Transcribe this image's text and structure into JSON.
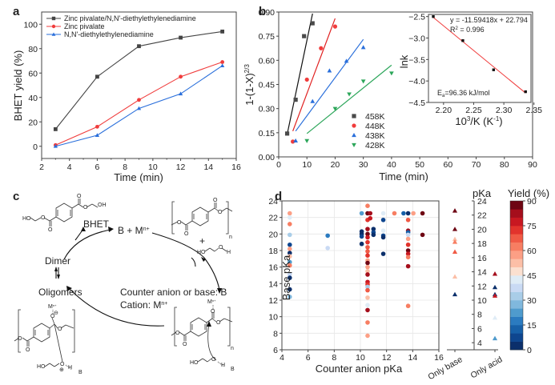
{
  "figure": {
    "panel_labels": [
      "a",
      "b",
      "c",
      "d"
    ]
  },
  "chart_data": [
    {
      "panel": "a",
      "type": "line",
      "title": "",
      "xlabel": "Time (min)",
      "ylabel": "BHET yield (%)",
      "xlim": [
        2,
        16
      ],
      "ylim": [
        -10,
        110
      ],
      "xticks": [
        2,
        4,
        6,
        8,
        10,
        12,
        14,
        16
      ],
      "yticks": [
        0,
        20,
        40,
        60,
        80,
        100
      ],
      "legend_position": "top-left",
      "x": [
        3,
        6,
        9,
        12,
        15
      ],
      "series": [
        {
          "name": "Zinc pivalate/N,N'-diethylethylenediamine",
          "marker": "square",
          "color": "#444444",
          "values": [
            14,
            57,
            82,
            89,
            94
          ]
        },
        {
          "name": "Zinc pivalate",
          "marker": "circle",
          "color": "#f03c3c",
          "values": [
            1,
            16,
            38,
            57,
            69
          ]
        },
        {
          "name": "N,N'-diethylethylenediamine",
          "marker": "triangle-up",
          "color": "#2a6fdb",
          "values": [
            0,
            9,
            31,
            43,
            66
          ]
        }
      ]
    },
    {
      "panel": "b",
      "type": "scatter",
      "title": "",
      "xlabel": "Time (min)",
      "ylabel": "1-(1-X)^2/3",
      "ylabel_base": "1-(1-X)",
      "ylabel_sup": "2/3",
      "xlim": [
        0,
        90
      ],
      "ylim": [
        0,
        0.9
      ],
      "xticks": [
        0,
        10,
        20,
        30,
        40,
        50,
        60,
        70,
        80,
        90
      ],
      "yticks": [
        "0.00",
        "0.15",
        "0.30",
        "0.45",
        "0.60",
        "0.75",
        "0.90"
      ],
      "legend_position": "bottom-center",
      "series": [
        {
          "name": "458K",
          "marker": "square",
          "color": "#4a4a4a",
          "line_color": "#111111",
          "x": [
            3,
            6,
            9,
            12
          ],
          "values": [
            0.145,
            0.355,
            0.75,
            0.83
          ],
          "fit": [
            [
              3,
              0.14
            ],
            [
              12,
              0.89
            ]
          ]
        },
        {
          "name": "448K",
          "marker": "circle",
          "color": "#f03c3c",
          "line_color": "#e02020",
          "x": [
            5,
            10,
            15,
            20
          ],
          "values": [
            0.095,
            0.48,
            0.675,
            0.81
          ],
          "fit": [
            [
              5,
              0.16
            ],
            [
              20,
              0.86
            ]
          ]
        },
        {
          "name": "438K",
          "marker": "triangle-up",
          "color": "#2a6fdb",
          "line_color": "#2a6fdb",
          "x": [
            6,
            12,
            18,
            24,
            30
          ],
          "values": [
            0.1,
            0.345,
            0.535,
            0.595,
            0.68
          ],
          "fit": [
            [
              6,
              0.16
            ],
            [
              30,
              0.73
            ]
          ]
        },
        {
          "name": "428K",
          "marker": "triangle-down",
          "color": "#2ca65a",
          "line_color": "#2ca65a",
          "x": [
            10,
            20,
            25,
            30,
            40
          ],
          "values": [
            0.1,
            0.3,
            0.39,
            0.47,
            0.52
          ],
          "fit": [
            [
              10,
              0.145
            ],
            [
              40,
              0.57
            ]
          ]
        }
      ],
      "inset": {
        "type": "scatter",
        "xlabel": "10^3/K (K^-1)",
        "xlabel_base": "10",
        "xlabel_sup": "3",
        "xlabel_mid": "/K (K",
        "xlabel_sup2": "-1",
        "xlabel_end": ")",
        "ylabel": "lnk",
        "xlim": [
          2.175,
          2.345
        ],
        "ylim": [
          -4.5,
          -2.45
        ],
        "xticks": [
          "2.20",
          "2.25",
          "2.30",
          "2.35"
        ],
        "yticks": [
          "-2.5",
          "-3.0",
          "-3.5",
          "-4.0",
          "-4.5"
        ],
        "x": [
          2.183,
          2.232,
          2.283,
          2.336
        ],
        "values": [
          -2.5,
          -3.06,
          -3.74,
          -4.25
        ],
        "fit_color": "#f03c3c",
        "fit": [
          [
            2.183,
            -2.52
          ],
          [
            2.336,
            -4.28
          ]
        ],
        "equation": "y = -11.59418x + 22.794",
        "r2_base": "R",
        "r2_sup": "2",
        "r2_rest": " = 0.996",
        "ea_base": "E",
        "ea_sub": "a",
        "ea_rest": "=96.36 kJ/mol"
      }
    },
    {
      "panel": "d",
      "type": "scatter",
      "title": "",
      "xlabel": "Counter anion pKa",
      "ylabel": "Base pKa",
      "xlim": [
        4,
        16
      ],
      "ylim": [
        6,
        24
      ],
      "xticks": [
        4,
        6,
        8,
        10,
        12,
        14,
        16
      ],
      "yticks": [
        6,
        8,
        10,
        12,
        14,
        16,
        18,
        20,
        22,
        24
      ],
      "grid": true,
      "color_scale": {
        "label": "Yield (%)",
        "range": [
          0,
          90
        ],
        "ticks": [
          0,
          15,
          30,
          45,
          60,
          75,
          90
        ],
        "colors": [
          "#0b2f6b",
          "#0e468f",
          "#1760a8",
          "#2b7bc0",
          "#4f9bcd",
          "#80b8dd",
          "#a9cde8",
          "#c9daf4",
          "#dfecf6",
          "#fbe0d0",
          "#fcbfa7",
          "#fc9f85",
          "#f77e62",
          "#f05a45",
          "#e2332c",
          "#c81821",
          "#a50e1c",
          "#6e0513"
        ]
      },
      "points": [
        {
          "x": 4.6,
          "y": 22.5,
          "yield": 55
        },
        {
          "x": 4.6,
          "y": 22.0,
          "yield": 42
        },
        {
          "x": 4.6,
          "y": 21.2,
          "yield": 62
        },
        {
          "x": 4.6,
          "y": 19.9,
          "yield": 33
        },
        {
          "x": 4.6,
          "y": 18.7,
          "yield": 5
        },
        {
          "x": 4.6,
          "y": 18.2,
          "yield": 58
        },
        {
          "x": 4.6,
          "y": 17.7,
          "yield": 2
        },
        {
          "x": 4.6,
          "y": 17.3,
          "yield": 52
        },
        {
          "x": 4.6,
          "y": 16.6,
          "yield": 22
        },
        {
          "x": 4.6,
          "y": 16.2,
          "yield": 60
        },
        {
          "x": 4.6,
          "y": 15.1,
          "yield": 35
        },
        {
          "x": 4.6,
          "y": 14.7,
          "yield": 3
        },
        {
          "x": 4.6,
          "y": 13.3,
          "yield": 2
        },
        {
          "x": 4.6,
          "y": 12.4,
          "yield": 28
        },
        {
          "x": 7.5,
          "y": 19.8,
          "yield": 18
        },
        {
          "x": 7.5,
          "y": 18.3,
          "yield": 38
        },
        {
          "x": 10.1,
          "y": 22.5,
          "yield": 20
        },
        {
          "x": 10.1,
          "y": 20.3,
          "yield": 4
        },
        {
          "x": 10.1,
          "y": 20.0,
          "yield": 2
        },
        {
          "x": 10.1,
          "y": 19.7,
          "yield": 6
        },
        {
          "x": 10.1,
          "y": 18.8,
          "yield": 3
        },
        {
          "x": 10.55,
          "y": 23.4,
          "yield": 62
        },
        {
          "x": 10.55,
          "y": 22.5,
          "yield": 86
        },
        {
          "x": 10.55,
          "y": 21.7,
          "yield": 70
        },
        {
          "x": 10.55,
          "y": 20.6,
          "yield": 82
        },
        {
          "x": 10.55,
          "y": 20.0,
          "yield": 88
        },
        {
          "x": 10.55,
          "y": 19.6,
          "yield": 78
        },
        {
          "x": 10.55,
          "y": 19.0,
          "yield": 74
        },
        {
          "x": 10.55,
          "y": 18.4,
          "yield": 68
        },
        {
          "x": 10.55,
          "y": 17.9,
          "yield": 65
        },
        {
          "x": 10.55,
          "y": 17.4,
          "yield": 72
        },
        {
          "x": 10.55,
          "y": 16.8,
          "yield": 55
        },
        {
          "x": 10.55,
          "y": 16.5,
          "yield": 88
        },
        {
          "x": 10.55,
          "y": 16.0,
          "yield": 57
        },
        {
          "x": 10.55,
          "y": 15.5,
          "yield": 52
        },
        {
          "x": 10.55,
          "y": 15.1,
          "yield": 82
        },
        {
          "x": 10.55,
          "y": 14.2,
          "yield": 76
        },
        {
          "x": 10.55,
          "y": 13.9,
          "yield": 70
        },
        {
          "x": 10.55,
          "y": 13.6,
          "yield": 30
        },
        {
          "x": 10.55,
          "y": 13.2,
          "yield": 66
        },
        {
          "x": 10.55,
          "y": 12.3,
          "yield": 50
        },
        {
          "x": 10.55,
          "y": 11.4,
          "yield": 42
        },
        {
          "x": 10.55,
          "y": 10.8,
          "yield": 80
        },
        {
          "x": 10.55,
          "y": 9.3,
          "yield": 63
        },
        {
          "x": 10.55,
          "y": 7.7,
          "yield": 55
        },
        {
          "x": 10.75,
          "y": 22.5,
          "yield": 84
        },
        {
          "x": 10.75,
          "y": 21.9,
          "yield": 78
        },
        {
          "x": 11.0,
          "y": 20.6,
          "yield": 4
        },
        {
          "x": 11.0,
          "y": 20.2,
          "yield": 5
        },
        {
          "x": 11.0,
          "y": 19.9,
          "yield": 3
        },
        {
          "x": 11.75,
          "y": 22.5,
          "yield": 42
        },
        {
          "x": 11.75,
          "y": 21.7,
          "yield": 7
        },
        {
          "x": 11.75,
          "y": 20.4,
          "yield": 40
        },
        {
          "x": 11.75,
          "y": 19.8,
          "yield": 5
        },
        {
          "x": 11.75,
          "y": 19.6,
          "yield": 3
        },
        {
          "x": 11.75,
          "y": 17.6,
          "yield": 2
        },
        {
          "x": 12.6,
          "y": 22.5,
          "yield": 62
        },
        {
          "x": 13.3,
          "y": 22.5,
          "yield": 14
        },
        {
          "x": 13.65,
          "y": 22.5,
          "yield": 4
        },
        {
          "x": 14.05,
          "y": 22.5,
          "yield": 58
        },
        {
          "x": 14.75,
          "y": 22.5,
          "yield": 90
        },
        {
          "x": 14.75,
          "y": 19.9,
          "yield": 88
        },
        {
          "x": 13.65,
          "y": 21.7,
          "yield": 68
        },
        {
          "x": 13.65,
          "y": 20.4,
          "yield": 82
        },
        {
          "x": 13.65,
          "y": 20.2,
          "yield": 10
        },
        {
          "x": 13.65,
          "y": 19.9,
          "yield": 38
        },
        {
          "x": 13.65,
          "y": 19.4,
          "yield": 56
        },
        {
          "x": 13.65,
          "y": 18.7,
          "yield": 74
        },
        {
          "x": 13.65,
          "y": 18.0,
          "yield": 90
        },
        {
          "x": 13.65,
          "y": 17.6,
          "yield": 78
        },
        {
          "x": 13.65,
          "y": 17.2,
          "yield": 60
        },
        {
          "x": 13.65,
          "y": 16.1,
          "yield": 84
        },
        {
          "x": 13.65,
          "y": 11.3,
          "yield": 60
        }
      ],
      "side_axis": {
        "title": "pKa",
        "ylim": [
          3,
          24
        ],
        "yticks": [
          4,
          6,
          8,
          10,
          12,
          14,
          16,
          18,
          20,
          22,
          24
        ],
        "categories": [
          "Only base",
          "Only acid"
        ],
        "only_base": [
          {
            "y": 22.6,
            "yield": 90
          },
          {
            "y": 20.0,
            "yield": 88
          },
          {
            "y": 18.6,
            "yield": 54
          },
          {
            "y": 18.2,
            "yield": 63
          },
          {
            "y": 16.8,
            "yield": 66
          },
          {
            "y": 13.3,
            "yield": 52
          },
          {
            "y": 10.8,
            "yield": 3
          }
        ],
        "only_acid": [
          {
            "y": 13.7,
            "yield": 80
          },
          {
            "y": 11.8,
            "yield": 3
          },
          {
            "y": 10.8,
            "yield": 2
          },
          {
            "y": 10.6,
            "yield": 78
          },
          {
            "y": 7.5,
            "yield": 42
          },
          {
            "y": 4.6,
            "yield": 24
          }
        ]
      }
    }
  ],
  "scheme": {
    "panel": "c",
    "bhet_label": "BHET",
    "catalyst_label": "B + M",
    "catalyst_sup": "n+",
    "dimer_label": "Dimer",
    "oligomers_label": "Oligomers",
    "legend_line1": "Counter anion or base: B",
    "legend_line2_base": "Cation: M",
    "legend_line2_sup": "n+",
    "plus_sign": "+",
    "subscript_n": "n",
    "atoms": {
      "ho": "HO",
      "oh": "OH",
      "o": "O",
      "h": "H",
      "b": "B",
      "m": "M",
      "msup": "n+",
      "minus": "⊖",
      "plus_charge": "⊕"
    }
  }
}
